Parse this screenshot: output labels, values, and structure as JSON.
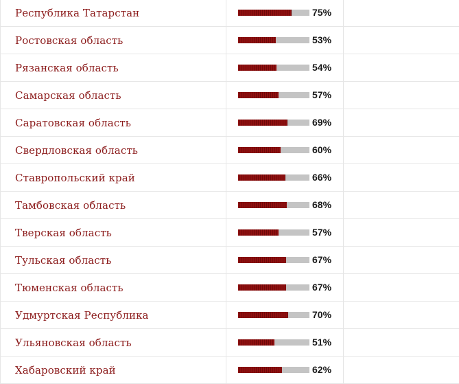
{
  "table": {
    "rows": [
      {
        "region": "Республика Татарстан",
        "percent_label": "75%",
        "value": 75
      },
      {
        "region": "Ростовская область",
        "percent_label": "53%",
        "value": 53
      },
      {
        "region": "Рязанская область",
        "percent_label": "54%",
        "value": 54
      },
      {
        "region": "Самарская область",
        "percent_label": "57%",
        "value": 57
      },
      {
        "region": "Саратовская область",
        "percent_label": "69%",
        "value": 69
      },
      {
        "region": "Свердловская область",
        "percent_label": "60%",
        "value": 60
      },
      {
        "region": "Ставропольский край",
        "percent_label": "66%",
        "value": 66
      },
      {
        "region": "Тамбовская область",
        "percent_label": "68%",
        "value": 68
      },
      {
        "region": "Тверская область",
        "percent_label": "57%",
        "value": 57
      },
      {
        "region": "Тульская область",
        "percent_label": "67%",
        "value": 67
      },
      {
        "region": "Тюменская область",
        "percent_label": "67%",
        "value": 67
      },
      {
        "region": "Удмуртская Республика",
        "percent_label": "70%",
        "value": 70
      },
      {
        "region": "Ульяновская область",
        "percent_label": "51%",
        "value": 51
      },
      {
        "region": "Хабаровский край",
        "percent_label": "62%",
        "value": 62
      }
    ]
  },
  "colors": {
    "region_text": "#8b1a1a",
    "bar_fill": "#8a0d0d",
    "bar_track": "#c4c4c4",
    "percent_text": "#1a1a1a",
    "row_border": "#e6e6e6"
  }
}
